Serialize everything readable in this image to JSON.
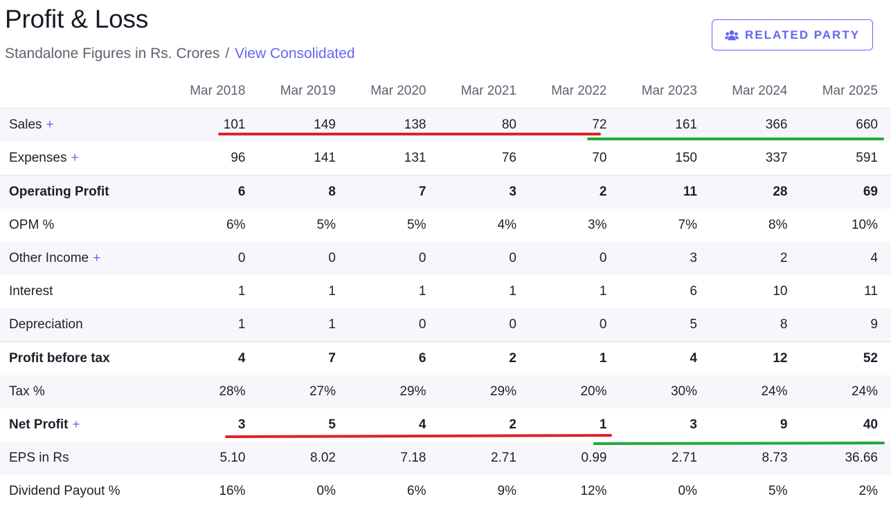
{
  "header": {
    "title": "Profit & Loss",
    "subtitle": "Standalone Figures in Rs. Crores",
    "separator": "/",
    "consolidated_link": "View Consolidated"
  },
  "related_party_button": {
    "label": "RELATED PARTY",
    "icon": "users-icon"
  },
  "table": {
    "columns": [
      "Mar 2018",
      "Mar 2019",
      "Mar 2020",
      "Mar 2021",
      "Mar 2022",
      "Mar 2023",
      "Mar 2024",
      "Mar 2025"
    ],
    "rows": [
      {
        "label": "Sales",
        "expandable": true,
        "strong": false,
        "values": [
          "101",
          "149",
          "138",
          "80",
          "72",
          "161",
          "366",
          "660"
        ]
      },
      {
        "label": "Expenses",
        "expandable": true,
        "strong": false,
        "values": [
          "96",
          "141",
          "131",
          "76",
          "70",
          "150",
          "337",
          "591"
        ]
      },
      {
        "label": "Operating Profit",
        "expandable": false,
        "strong": true,
        "values": [
          "6",
          "8",
          "7",
          "3",
          "2",
          "11",
          "28",
          "69"
        ]
      },
      {
        "label": "OPM %",
        "expandable": false,
        "strong": false,
        "values": [
          "6%",
          "5%",
          "5%",
          "4%",
          "3%",
          "7%",
          "8%",
          "10%"
        ]
      },
      {
        "label": "Other Income",
        "expandable": true,
        "strong": false,
        "values": [
          "0",
          "0",
          "0",
          "0",
          "0",
          "3",
          "2",
          "4"
        ]
      },
      {
        "label": "Interest",
        "expandable": false,
        "strong": false,
        "values": [
          "1",
          "1",
          "1",
          "1",
          "1",
          "6",
          "10",
          "11"
        ]
      },
      {
        "label": "Depreciation",
        "expandable": false,
        "strong": false,
        "values": [
          "1",
          "1",
          "0",
          "0",
          "0",
          "5",
          "8",
          "9"
        ]
      },
      {
        "label": "Profit before tax",
        "expandable": false,
        "strong": true,
        "values": [
          "4",
          "7",
          "6",
          "2",
          "1",
          "4",
          "12",
          "52"
        ]
      },
      {
        "label": "Tax %",
        "expandable": false,
        "strong": false,
        "values": [
          "28%",
          "27%",
          "29%",
          "29%",
          "20%",
          "30%",
          "24%",
          "24%"
        ]
      },
      {
        "label": "Net Profit",
        "expandable": true,
        "strong": true,
        "values": [
          "3",
          "5",
          "4",
          "2",
          "1",
          "3",
          "9",
          "40"
        ]
      },
      {
        "label": "EPS in Rs",
        "expandable": false,
        "strong": false,
        "values": [
          "5.10",
          "8.02",
          "7.18",
          "2.71",
          "0.99",
          "2.71",
          "8.73",
          "36.66"
        ]
      },
      {
        "label": "Dividend Payout %",
        "expandable": false,
        "strong": false,
        "values": [
          "16%",
          "0%",
          "6%",
          "9%",
          "12%",
          "0%",
          "5%",
          "2%"
        ]
      }
    ],
    "expand_symbol": "+"
  },
  "colors": {
    "accent": "#6366f1",
    "highlight_red": "#e0212b",
    "highlight_green": "#22a93c",
    "row_alt_bg": "#f7f7fb"
  }
}
